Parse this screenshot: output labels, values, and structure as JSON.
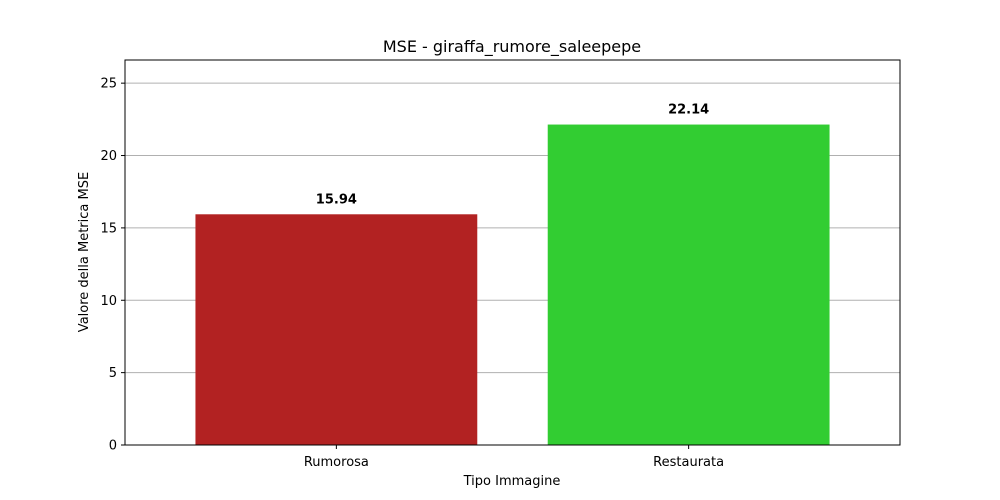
{
  "chart_data": {
    "type": "bar",
    "title": "MSE - giraffa_rumore_saleepepe",
    "xlabel": "Tipo Immagine",
    "ylabel": "Valore della Metrica MSE",
    "categories": [
      "Rumorosa",
      "Restaurata"
    ],
    "values": [
      15.94,
      22.14
    ],
    "data_labels": [
      "15.94",
      "22.14"
    ],
    "colors": [
      "#b22222",
      "#32cd32"
    ],
    "ylim": [
      0,
      26.6
    ],
    "yticks": [
      0,
      5,
      10,
      15,
      20,
      25
    ],
    "ytick_labels": [
      "0",
      "5",
      "10",
      "15",
      "20",
      "25"
    ],
    "grid": "y",
    "legend": "none"
  }
}
